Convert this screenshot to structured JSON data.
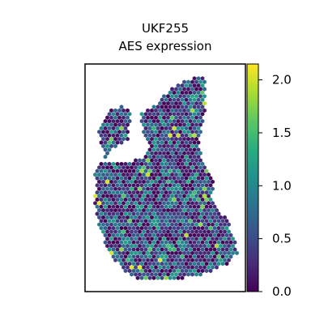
{
  "chart_data": {
    "type": "scatter",
    "title": "UKF255",
    "subtitle": "AES expression",
    "colormap": "viridis",
    "colorbar": {
      "vmin": 0.0,
      "vmax": 2.15,
      "ticks": [
        0.0,
        0.5,
        1.0,
        1.5,
        2.0
      ],
      "tick_labels": [
        "0.0",
        "0.5",
        "1.0",
        "1.5",
        "2.0"
      ]
    },
    "axes_visible": false,
    "marker": "hexagon",
    "points_note": "Spatial spots, roughly 1700 hexagonal spots colored by AES expression; most values fall between 0 and 1.2, a few higher ones reach about 2.1."
  }
}
